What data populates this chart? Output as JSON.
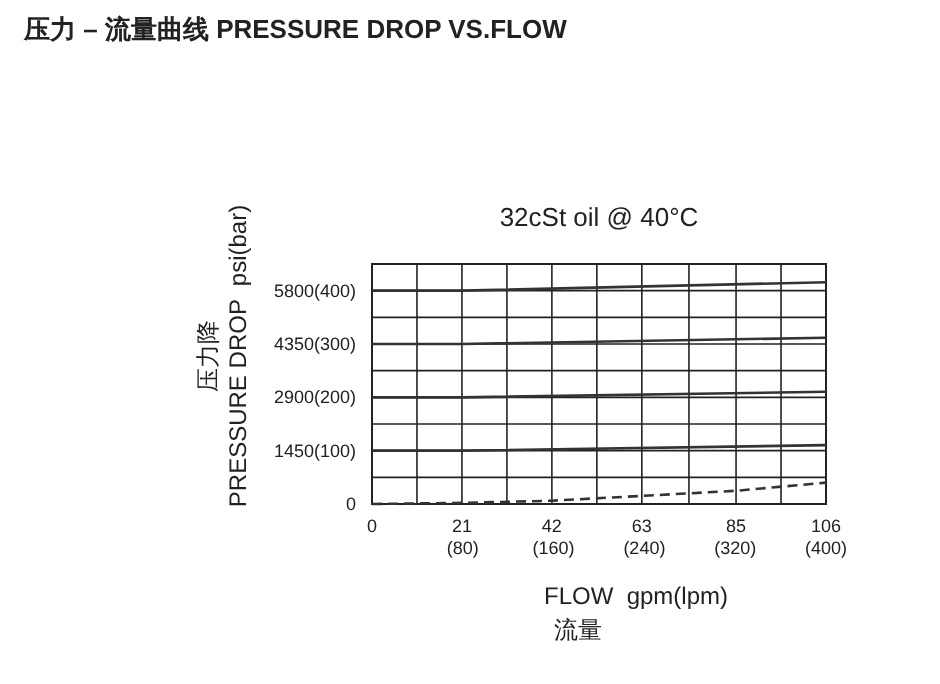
{
  "chart_data": {
    "type": "line",
    "title": "压力 – 流量曲线 PRESSURE DROP VS.FLOW",
    "subtitle": "32cSt oil @ 40°C",
    "xlabel": "FLOW  gpm(lpm)\n流量",
    "ylabel": "压力降\nPRESSURE DROP  psi(bar)",
    "xlim": [
      0,
      106
    ],
    "ylim": [
      0,
      6525
    ],
    "x2lim": [
      0,
      400
    ],
    "y2lim": [
      0,
      450
    ],
    "xticks": [
      0,
      {
        "value": 10.5,
        "label": null
      },
      21,
      {
        "value": 31.5,
        "label": null
      },
      42,
      {
        "value": 52.5,
        "label": null
      },
      63,
      {
        "value": 74,
        "label": null
      },
      85,
      {
        "value": 95.5,
        "label": null
      },
      106
    ],
    "x2ticks": [
      {
        "value": 80,
        "label": "(80)"
      },
      {
        "value": 160,
        "label": "(160)"
      },
      {
        "value": 240,
        "label": "(240)"
      },
      {
        "value": 320,
        "label": "(320)"
      },
      {
        "value": 400,
        "label": "(400)"
      }
    ],
    "yticks": [
      {
        "value": 0,
        "label": null
      },
      {
        "value": 725,
        "label": null
      },
      1450,
      {
        "value": 2175,
        "label": null
      },
      2900,
      {
        "value": 3625,
        "label": null
      },
      4350,
      {
        "value": 5075,
        "label": null
      },
      5800
    ],
    "y2ticks": [
      0,
      {
        "value": 100,
        "label": "(100)"
      },
      {
        "value": 200,
        "label": "(200)"
      },
      {
        "value": 300,
        "label": "(300)"
      },
      {
        "value": 400,
        "label": "(400)"
      }
    ],
    "grid": true,
    "series": [
      {
        "color": "#333333",
        "line_style": "solid",
        "x": [
          0,
          21,
          106
        ],
        "values": [
          5800,
          5800,
          6030
        ]
      },
      {
        "color": "#333333",
        "line_style": "solid",
        "x": [
          0,
          21,
          106
        ],
        "values": [
          4350,
          4350,
          4520
        ]
      },
      {
        "color": "#333333",
        "line_style": "solid",
        "x": [
          0,
          21,
          106
        ],
        "values": [
          2900,
          2900,
          3050
        ]
      },
      {
        "color": "#333333",
        "line_style": "solid",
        "x": [
          0,
          21,
          106
        ],
        "values": [
          1450,
          1450,
          1600
        ]
      },
      {
        "color": "#333333",
        "line_style": "dashed",
        "x": [
          0,
          21,
          42,
          63,
          85,
          106
        ],
        "values": [
          0,
          30,
          90,
          220,
          360,
          580
        ]
      }
    ]
  }
}
